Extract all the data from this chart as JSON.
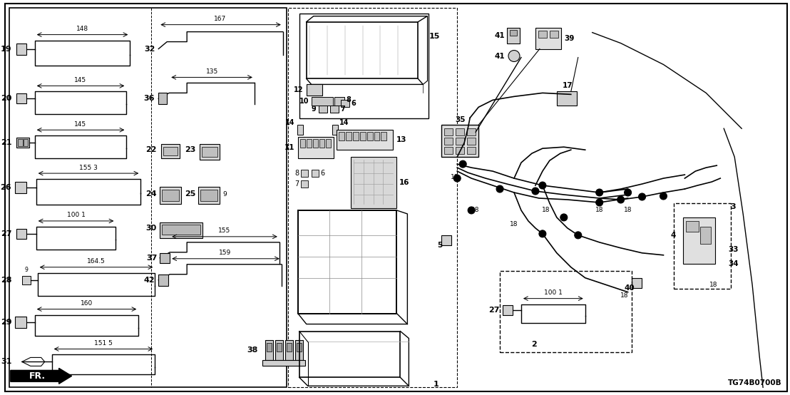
{
  "bg_color": "#ffffff",
  "line_color": "#000000",
  "fig_width": 11.08,
  "fig_height": 5.54,
  "dpi": 100,
  "part_number_label": "TG74B0700B",
  "label1": "1",
  "label2": "2",
  "fr_label": "FR."
}
